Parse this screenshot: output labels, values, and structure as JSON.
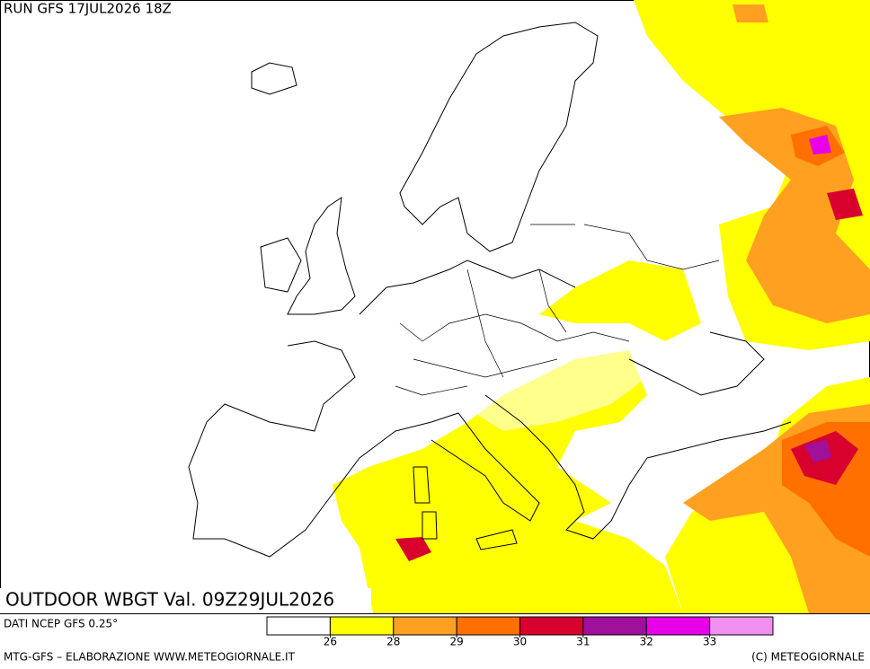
{
  "header": {
    "run": "RUN GFS 17JUL2026 18Z"
  },
  "title": "OUTDOOR WBGT Val. 09Z29JUL2026",
  "source": "DATI NCEP GFS 0.25°",
  "legend": {
    "colors": [
      "#ffffff",
      "#ffff00",
      "#ffa020",
      "#ff7000",
      "#d8002c",
      "#a0109a",
      "#e800e8",
      "#f090f0"
    ],
    "ticks": [
      26,
      28,
      29,
      30,
      31,
      32,
      33
    ]
  },
  "footer": {
    "left": "MTG-GFS – ELABORAZIONE WWW.METEOGIORNALE.IT",
    "right": "(C) METEOGIORNALE"
  }
}
